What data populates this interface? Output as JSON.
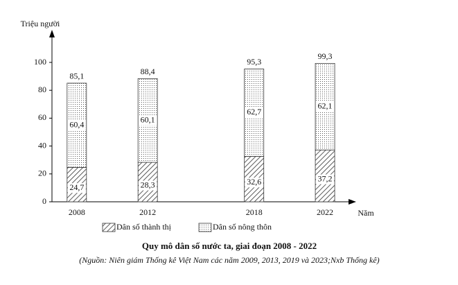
{
  "chart_data": {
    "type": "stacked_bar",
    "title": "Quy mô dân số nước ta, giai đoạn 2008 - 2022",
    "subtitle": "(Nguồn: Niên giám Thống kê Việt Nam các năm 2009, 2013, 2019 và 2023;Nxb Thống kê)",
    "y_label": "Triệu người",
    "x_label": "Năm",
    "x": [
      2008,
      2012,
      2018,
      2022
    ],
    "xlim": [
      2006.6,
      2023.6
    ],
    "ylim": [
      0,
      100
    ],
    "yticks": [
      0,
      20,
      40,
      60,
      80,
      100
    ],
    "series": [
      {
        "name": "Dân số thành thị",
        "pattern": "hatch",
        "values": [
          24.7,
          28.3,
          32.6,
          37.2
        ],
        "value_labels": [
          "24,7",
          "28,3",
          "32,6",
          "37,2"
        ]
      },
      {
        "name": "Dân số nông thôn",
        "pattern": "dots",
        "values": [
          60.4,
          60.1,
          62.7,
          62.1
        ],
        "value_labels": [
          "60,4",
          "60,1",
          "62,7",
          "62,1"
        ]
      }
    ],
    "totals": [
      85.1,
      88.4,
      95.3,
      99.3
    ],
    "total_labels": [
      "85,1",
      "88,4",
      "95,3",
      "99,3"
    ]
  }
}
